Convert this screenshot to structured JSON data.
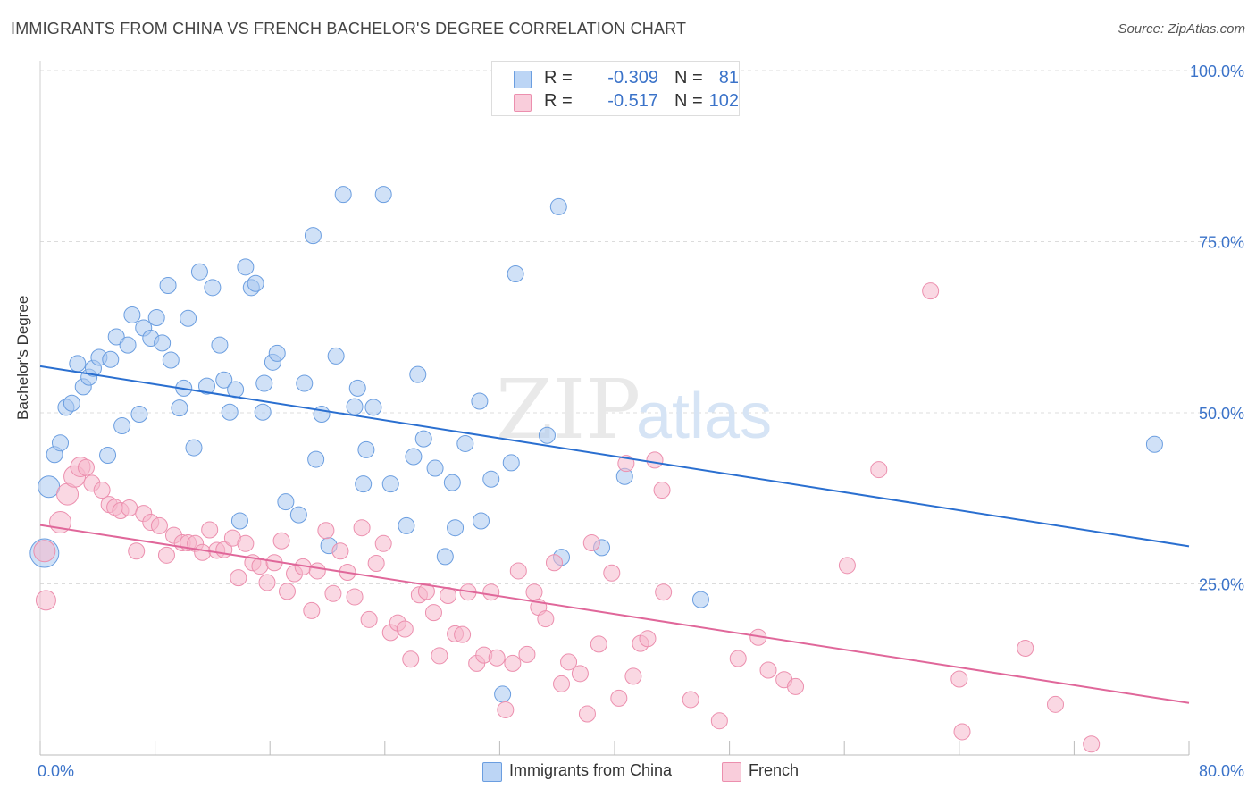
{
  "title": "IMMIGRANTS FROM CHINA VS FRENCH BACHELOR'S DEGREE CORRELATION CHART",
  "source": "Source: ZipAtlas.com",
  "watermark": {
    "zip": "ZIP",
    "atlas": "atlas"
  },
  "legend_top": {
    "rows": [
      {
        "r_label": "R =",
        "r_value": "-0.309",
        "n_label": "N =",
        "n_value": "81"
      },
      {
        "r_label": "R =",
        "r_value": "-0.517",
        "n_label": "N =",
        "n_value": "102"
      }
    ]
  },
  "legend_bottom": [
    "Immigrants from China",
    "French"
  ],
  "colors": {
    "china_fill": "#a9c8f0",
    "china_stroke": "#6b9ee0",
    "china_line": "#2a6fd0",
    "french_fill": "#f6b8cc",
    "french_stroke": "#ec8fae",
    "french_line": "#e0679a",
    "tick_label": "#3b73c9",
    "grid": "#dcdcdc"
  },
  "chart_data": {
    "type": "scatter",
    "xlabel": "",
    "ylabel": "Bachelor's Degree",
    "xlim": [
      0,
      80
    ],
    "ylim": [
      0,
      100
    ],
    "x_tick_labels": [
      "0.0%",
      "80.0%"
    ],
    "y_tick_labels": [
      "25.0%",
      "50.0%",
      "75.0%",
      "100.0%"
    ],
    "y_ticks": [
      25,
      50,
      75,
      100
    ],
    "grid": true,
    "series": [
      {
        "name": "Immigrants from China",
        "r": -0.309,
        "n": 81,
        "trend": {
          "x": [
            0,
            80
          ],
          "y": [
            56.8,
            30.5
          ]
        },
        "points": [
          {
            "x": 0.3,
            "y": 29.5,
            "s": 16
          },
          {
            "x": 0.6,
            "y": 39.2,
            "s": 12
          },
          {
            "x": 1.0,
            "y": 43.9,
            "s": 9
          },
          {
            "x": 1.4,
            "y": 45.6,
            "s": 9
          },
          {
            "x": 1.8,
            "y": 50.8,
            "s": 9
          },
          {
            "x": 2.2,
            "y": 51.4,
            "s": 9
          },
          {
            "x": 2.6,
            "y": 57.2,
            "s": 9
          },
          {
            "x": 3.0,
            "y": 53.8,
            "s": 9
          },
          {
            "x": 3.4,
            "y": 55.2,
            "s": 9
          },
          {
            "x": 3.7,
            "y": 56.5,
            "s": 9
          },
          {
            "x": 4.1,
            "y": 58.1,
            "s": 9
          },
          {
            "x": 4.7,
            "y": 43.8,
            "s": 9
          },
          {
            "x": 4.9,
            "y": 57.8,
            "s": 9
          },
          {
            "x": 5.3,
            "y": 61.1,
            "s": 9
          },
          {
            "x": 5.7,
            "y": 48.1,
            "s": 9
          },
          {
            "x": 6.1,
            "y": 59.9,
            "s": 9
          },
          {
            "x": 6.4,
            "y": 64.3,
            "s": 9
          },
          {
            "x": 6.9,
            "y": 49.8,
            "s": 9
          },
          {
            "x": 7.2,
            "y": 62.4,
            "s": 9
          },
          {
            "x": 7.7,
            "y": 60.9,
            "s": 9
          },
          {
            "x": 8.1,
            "y": 63.9,
            "s": 9
          },
          {
            "x": 8.5,
            "y": 60.2,
            "s": 9
          },
          {
            "x": 8.9,
            "y": 68.6,
            "s": 9
          },
          {
            "x": 9.1,
            "y": 57.7,
            "s": 9
          },
          {
            "x": 9.7,
            "y": 50.7,
            "s": 9
          },
          {
            "x": 10.0,
            "y": 53.6,
            "s": 9
          },
          {
            "x": 10.3,
            "y": 63.8,
            "s": 9
          },
          {
            "x": 10.7,
            "y": 44.9,
            "s": 9
          },
          {
            "x": 11.1,
            "y": 70.6,
            "s": 9
          },
          {
            "x": 11.6,
            "y": 53.9,
            "s": 9
          },
          {
            "x": 12.0,
            "y": 68.3,
            "s": 9
          },
          {
            "x": 12.5,
            "y": 59.9,
            "s": 9
          },
          {
            "x": 12.8,
            "y": 54.8,
            "s": 9
          },
          {
            "x": 13.2,
            "y": 50.1,
            "s": 9
          },
          {
            "x": 13.6,
            "y": 53.4,
            "s": 9
          },
          {
            "x": 13.9,
            "y": 34.2,
            "s": 9
          },
          {
            "x": 14.3,
            "y": 71.3,
            "s": 9
          },
          {
            "x": 14.7,
            "y": 68.3,
            "s": 9
          },
          {
            "x": 15.0,
            "y": 68.9,
            "s": 9
          },
          {
            "x": 15.5,
            "y": 50.1,
            "s": 9
          },
          {
            "x": 15.6,
            "y": 54.3,
            "s": 9
          },
          {
            "x": 16.2,
            "y": 57.4,
            "s": 9
          },
          {
            "x": 16.5,
            "y": 58.7,
            "s": 9
          },
          {
            "x": 17.1,
            "y": 37.0,
            "s": 9
          },
          {
            "x": 18.0,
            "y": 35.1,
            "s": 9
          },
          {
            "x": 18.4,
            "y": 54.3,
            "s": 9
          },
          {
            "x": 19.0,
            "y": 75.9,
            "s": 9
          },
          {
            "x": 19.2,
            "y": 43.2,
            "s": 9
          },
          {
            "x": 19.6,
            "y": 49.8,
            "s": 9
          },
          {
            "x": 20.1,
            "y": 30.6,
            "s": 9
          },
          {
            "x": 20.6,
            "y": 58.3,
            "s": 9
          },
          {
            "x": 21.1,
            "y": 81.9,
            "s": 9
          },
          {
            "x": 21.9,
            "y": 50.9,
            "s": 9
          },
          {
            "x": 22.1,
            "y": 53.6,
            "s": 9
          },
          {
            "x": 22.5,
            "y": 39.6,
            "s": 9
          },
          {
            "x": 22.7,
            "y": 44.6,
            "s": 9
          },
          {
            "x": 23.2,
            "y": 50.8,
            "s": 9
          },
          {
            "x": 23.9,
            "y": 81.9,
            "s": 9
          },
          {
            "x": 24.4,
            "y": 39.6,
            "s": 9
          },
          {
            "x": 25.5,
            "y": 33.5,
            "s": 9
          },
          {
            "x": 26.0,
            "y": 43.6,
            "s": 9
          },
          {
            "x": 26.3,
            "y": 55.6,
            "s": 9
          },
          {
            "x": 26.7,
            "y": 46.2,
            "s": 9
          },
          {
            "x": 27.5,
            "y": 41.9,
            "s": 9
          },
          {
            "x": 28.2,
            "y": 29.0,
            "s": 9
          },
          {
            "x": 28.7,
            "y": 39.8,
            "s": 9
          },
          {
            "x": 28.9,
            "y": 33.2,
            "s": 9
          },
          {
            "x": 29.6,
            "y": 45.5,
            "s": 9
          },
          {
            "x": 30.6,
            "y": 51.7,
            "s": 9
          },
          {
            "x": 30.7,
            "y": 34.2,
            "s": 9
          },
          {
            "x": 31.4,
            "y": 40.3,
            "s": 9
          },
          {
            "x": 32.2,
            "y": 8.9,
            "s": 9
          },
          {
            "x": 32.8,
            "y": 42.7,
            "s": 9
          },
          {
            "x": 33.1,
            "y": 70.3,
            "s": 9
          },
          {
            "x": 35.3,
            "y": 46.7,
            "s": 9
          },
          {
            "x": 36.1,
            "y": 80.1,
            "s": 9
          },
          {
            "x": 36.3,
            "y": 28.9,
            "s": 9
          },
          {
            "x": 39.1,
            "y": 30.3,
            "s": 9
          },
          {
            "x": 40.7,
            "y": 40.7,
            "s": 9
          },
          {
            "x": 46.0,
            "y": 22.7,
            "s": 9
          },
          {
            "x": 77.6,
            "y": 45.4,
            "s": 9
          }
        ]
      },
      {
        "name": "French",
        "r": -0.517,
        "n": 102,
        "trend": {
          "x": [
            0,
            80
          ],
          "y": [
            33.6,
            7.6
          ]
        },
        "points": [
          {
            "x": 0.3,
            "y": 29.8,
            "s": 12
          },
          {
            "x": 0.4,
            "y": 22.6,
            "s": 11
          },
          {
            "x": 1.4,
            "y": 34.0,
            "s": 12
          },
          {
            "x": 1.9,
            "y": 38.1,
            "s": 12
          },
          {
            "x": 2.4,
            "y": 40.7,
            "s": 12
          },
          {
            "x": 2.8,
            "y": 42.1,
            "s": 11
          },
          {
            "x": 3.2,
            "y": 42.0,
            "s": 9
          },
          {
            "x": 3.6,
            "y": 39.7,
            "s": 9
          },
          {
            "x": 4.3,
            "y": 38.7,
            "s": 9
          },
          {
            "x": 4.8,
            "y": 36.6,
            "s": 9
          },
          {
            "x": 5.2,
            "y": 36.2,
            "s": 9
          },
          {
            "x": 5.6,
            "y": 35.7,
            "s": 9
          },
          {
            "x": 6.2,
            "y": 36.1,
            "s": 9
          },
          {
            "x": 6.7,
            "y": 29.8,
            "s": 9
          },
          {
            "x": 7.2,
            "y": 35.3,
            "s": 9
          },
          {
            "x": 7.7,
            "y": 34.0,
            "s": 9
          },
          {
            "x": 8.3,
            "y": 33.5,
            "s": 9
          },
          {
            "x": 8.8,
            "y": 29.2,
            "s": 9
          },
          {
            "x": 9.3,
            "y": 32.1,
            "s": 9
          },
          {
            "x": 9.9,
            "y": 31.0,
            "s": 9
          },
          {
            "x": 10.3,
            "y": 31.0,
            "s": 9
          },
          {
            "x": 10.8,
            "y": 30.9,
            "s": 9
          },
          {
            "x": 11.3,
            "y": 29.6,
            "s": 9
          },
          {
            "x": 11.8,
            "y": 32.9,
            "s": 9
          },
          {
            "x": 12.3,
            "y": 29.9,
            "s": 9
          },
          {
            "x": 12.8,
            "y": 30.0,
            "s": 9
          },
          {
            "x": 13.4,
            "y": 31.7,
            "s": 9
          },
          {
            "x": 13.8,
            "y": 25.9,
            "s": 9
          },
          {
            "x": 14.3,
            "y": 30.9,
            "s": 9
          },
          {
            "x": 14.8,
            "y": 28.1,
            "s": 9
          },
          {
            "x": 15.3,
            "y": 27.6,
            "s": 9
          },
          {
            "x": 15.8,
            "y": 25.2,
            "s": 9
          },
          {
            "x": 16.3,
            "y": 28.1,
            "s": 9
          },
          {
            "x": 16.8,
            "y": 31.3,
            "s": 9
          },
          {
            "x": 17.2,
            "y": 23.9,
            "s": 9
          },
          {
            "x": 17.7,
            "y": 26.5,
            "s": 9
          },
          {
            "x": 18.3,
            "y": 27.5,
            "s": 9
          },
          {
            "x": 18.9,
            "y": 21.1,
            "s": 9
          },
          {
            "x": 19.3,
            "y": 26.9,
            "s": 9
          },
          {
            "x": 19.9,
            "y": 32.8,
            "s": 9
          },
          {
            "x": 20.4,
            "y": 23.6,
            "s": 9
          },
          {
            "x": 20.9,
            "y": 29.8,
            "s": 9
          },
          {
            "x": 21.4,
            "y": 26.7,
            "s": 9
          },
          {
            "x": 21.9,
            "y": 23.1,
            "s": 9
          },
          {
            "x": 22.4,
            "y": 33.2,
            "s": 9
          },
          {
            "x": 22.9,
            "y": 19.8,
            "s": 9
          },
          {
            "x": 23.4,
            "y": 28.0,
            "s": 9
          },
          {
            "x": 23.9,
            "y": 30.9,
            "s": 9
          },
          {
            "x": 24.4,
            "y": 17.9,
            "s": 9
          },
          {
            "x": 24.9,
            "y": 19.3,
            "s": 9
          },
          {
            "x": 25.4,
            "y": 18.4,
            "s": 9
          },
          {
            "x": 25.8,
            "y": 14.0,
            "s": 9
          },
          {
            "x": 26.4,
            "y": 23.4,
            "s": 9
          },
          {
            "x": 26.9,
            "y": 23.9,
            "s": 9
          },
          {
            "x": 27.4,
            "y": 20.8,
            "s": 9
          },
          {
            "x": 27.8,
            "y": 14.5,
            "s": 9
          },
          {
            "x": 28.4,
            "y": 23.3,
            "s": 9
          },
          {
            "x": 28.9,
            "y": 17.7,
            "s": 9
          },
          {
            "x": 29.4,
            "y": 17.6,
            "s": 9
          },
          {
            "x": 29.8,
            "y": 23.8,
            "s": 9
          },
          {
            "x": 30.4,
            "y": 13.4,
            "s": 9
          },
          {
            "x": 30.9,
            "y": 14.6,
            "s": 9
          },
          {
            "x": 31.4,
            "y": 23.8,
            "s": 9
          },
          {
            "x": 31.8,
            "y": 14.2,
            "s": 9
          },
          {
            "x": 32.4,
            "y": 6.6,
            "s": 9
          },
          {
            "x": 32.9,
            "y": 13.4,
            "s": 9
          },
          {
            "x": 33.3,
            "y": 26.9,
            "s": 9
          },
          {
            "x": 33.9,
            "y": 14.7,
            "s": 9
          },
          {
            "x": 34.4,
            "y": 23.8,
            "s": 9
          },
          {
            "x": 34.7,
            "y": 21.6,
            "s": 9
          },
          {
            "x": 35.2,
            "y": 19.9,
            "s": 9
          },
          {
            "x": 35.8,
            "y": 28.1,
            "s": 9
          },
          {
            "x": 36.3,
            "y": 10.4,
            "s": 9
          },
          {
            "x": 36.8,
            "y": 13.6,
            "s": 9
          },
          {
            "x": 37.6,
            "y": 11.9,
            "s": 9
          },
          {
            "x": 38.1,
            "y": 6.0,
            "s": 9
          },
          {
            "x": 38.4,
            "y": 31.0,
            "s": 9
          },
          {
            "x": 38.9,
            "y": 16.2,
            "s": 9
          },
          {
            "x": 39.8,
            "y": 26.6,
            "s": 9
          },
          {
            "x": 40.3,
            "y": 8.3,
            "s": 9
          },
          {
            "x": 40.8,
            "y": 42.6,
            "s": 9
          },
          {
            "x": 41.3,
            "y": 11.5,
            "s": 9
          },
          {
            "x": 41.8,
            "y": 16.3,
            "s": 9
          },
          {
            "x": 42.3,
            "y": 17.0,
            "s": 9
          },
          {
            "x": 42.8,
            "y": 43.1,
            "s": 9
          },
          {
            "x": 43.3,
            "y": 38.7,
            "s": 9
          },
          {
            "x": 43.4,
            "y": 23.8,
            "s": 9
          },
          {
            "x": 45.3,
            "y": 8.1,
            "s": 9
          },
          {
            "x": 47.3,
            "y": 5.0,
            "s": 9
          },
          {
            "x": 48.6,
            "y": 14.1,
            "s": 9
          },
          {
            "x": 50.0,
            "y": 17.2,
            "s": 9
          },
          {
            "x": 50.7,
            "y": 12.4,
            "s": 9
          },
          {
            "x": 51.8,
            "y": 11.0,
            "s": 9
          },
          {
            "x": 52.6,
            "y": 10.0,
            "s": 9
          },
          {
            "x": 56.2,
            "y": 27.7,
            "s": 9
          },
          {
            "x": 58.4,
            "y": 41.7,
            "s": 9
          },
          {
            "x": 62.0,
            "y": 67.8,
            "s": 9
          },
          {
            "x": 64.0,
            "y": 11.1,
            "s": 9
          },
          {
            "x": 64.2,
            "y": 3.4,
            "s": 9
          },
          {
            "x": 68.6,
            "y": 15.6,
            "s": 9
          },
          {
            "x": 70.7,
            "y": 7.4,
            "s": 9
          },
          {
            "x": 73.2,
            "y": 1.6,
            "s": 9
          }
        ]
      }
    ]
  }
}
